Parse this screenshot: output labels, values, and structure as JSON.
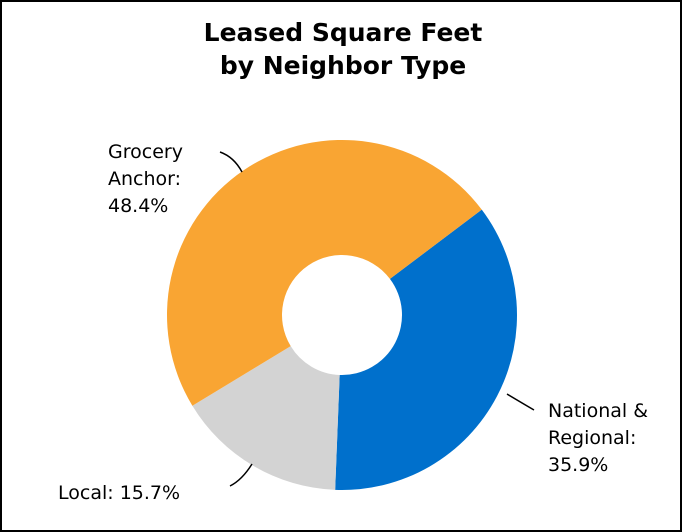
{
  "chart_data": {
    "type": "donut",
    "title": "Leased Square Feet\nby Neighbor Type",
    "categories": [
      "National & Regional:",
      "Local:",
      "Grocery Anchor:"
    ],
    "values": [
      35.9,
      15.7,
      48.4
    ],
    "value_labels": [
      "35.9%",
      "15.7%",
      "48.4%"
    ],
    "colors": [
      "#0070CC",
      "#D3D3D3",
      "#F9A533"
    ]
  }
}
